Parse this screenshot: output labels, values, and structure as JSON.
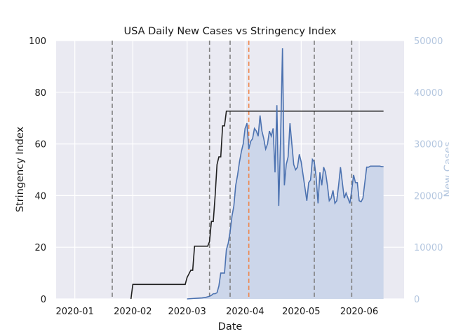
{
  "chart_data": {
    "type": "line",
    "title": "USA Daily New Cases vs Stringency Index",
    "xlabel": "Date",
    "ylabel_left": "Stringency Index",
    "ylabel_right": "New Cases",
    "x_ticks": [
      "2020-01",
      "2020-02",
      "2020-03",
      "2020-04",
      "2020-05",
      "2020-06"
    ],
    "y_left_ticks": [
      "0",
      "20",
      "40",
      "60",
      "80",
      "100"
    ],
    "y_right_ticks": [
      "0",
      "10000",
      "20000",
      "30000",
      "40000",
      "50000"
    ],
    "ylim_left": [
      0,
      100
    ],
    "ylim_right": [
      0,
      50000
    ],
    "xlim": [
      "2019-12-22",
      "2020-06-25"
    ],
    "grid": true,
    "colors": {
      "background": "#eaeaf2",
      "grid": "#ffffff",
      "stringency": "#1f1f1f",
      "cases_line": "#4c72b0",
      "cases_fill": "#ccd6ea",
      "right_axis_text": "#b3c6df",
      "event_lines": "#7f7f7f",
      "highlight_line": "#ee854a"
    },
    "vertical_lines": [
      {
        "date": "2020-01-21",
        "color": "gray"
      },
      {
        "date": "2020-03-13",
        "color": "gray"
      },
      {
        "date": "2020-03-24",
        "color": "gray"
      },
      {
        "date": "2020-04-03",
        "color": "orange"
      },
      {
        "date": "2020-05-08",
        "color": "gray"
      },
      {
        "date": "2020-05-28",
        "color": "gray"
      }
    ],
    "series": [
      {
        "axis": "left",
        "style": "step-line",
        "x": [
          "2020-01-31",
          "2020-02-01",
          "2020-02-02",
          "2020-02-29",
          "2020-03-01",
          "2020-03-03",
          "2020-03-04",
          "2020-03-05",
          "2020-03-12",
          "2020-03-13",
          "2020-03-14",
          "2020-03-15",
          "2020-03-16",
          "2020-03-17",
          "2020-03-18",
          "2020-03-19",
          "2020-03-20",
          "2020-03-21",
          "2020-03-22",
          "2020-03-23",
          "2020-06-14"
        ],
        "y": [
          0,
          5.6,
          5.6,
          5.6,
          8.3,
          11.1,
          11.1,
          20.4,
          20.4,
          22.2,
          30,
          30,
          40,
          52,
          55,
          55,
          67,
          67,
          72.7,
          72.7,
          72.7
        ]
      },
      {
        "axis": "right",
        "style": "line-filled",
        "x": [
          "2020-03-01",
          "2020-03-03",
          "2020-03-05",
          "2020-03-07",
          "2020-03-09",
          "2020-03-11",
          "2020-03-13",
          "2020-03-14",
          "2020-03-15",
          "2020-03-16",
          "2020-03-17",
          "2020-03-18",
          "2020-03-19",
          "2020-03-20",
          "2020-03-21",
          "2020-03-22",
          "2020-03-23",
          "2020-03-24",
          "2020-03-25",
          "2020-03-26",
          "2020-03-27",
          "2020-03-28",
          "2020-03-29",
          "2020-03-30",
          "2020-03-31",
          "2020-04-01",
          "2020-04-02",
          "2020-04-03",
          "2020-04-04",
          "2020-04-05",
          "2020-04-06",
          "2020-04-07",
          "2020-04-08",
          "2020-04-09",
          "2020-04-10",
          "2020-04-11",
          "2020-04-12",
          "2020-04-13",
          "2020-04-14",
          "2020-04-15",
          "2020-04-16",
          "2020-04-17",
          "2020-04-18",
          "2020-04-19",
          "2020-04-20",
          "2020-04-21",
          "2020-04-22",
          "2020-04-23",
          "2020-04-24",
          "2020-04-25",
          "2020-04-26",
          "2020-04-27",
          "2020-04-28",
          "2020-04-29",
          "2020-04-30",
          "2020-05-01",
          "2020-05-02",
          "2020-05-03",
          "2020-05-04",
          "2020-05-05",
          "2020-05-06",
          "2020-05-07",
          "2020-05-08",
          "2020-05-09",
          "2020-05-10",
          "2020-05-11",
          "2020-05-12",
          "2020-05-13",
          "2020-05-14",
          "2020-05-15",
          "2020-05-16",
          "2020-05-17",
          "2020-05-18",
          "2020-05-19",
          "2020-05-20",
          "2020-05-21",
          "2020-05-22",
          "2020-05-23",
          "2020-05-24",
          "2020-05-25",
          "2020-05-26",
          "2020-05-27",
          "2020-05-28",
          "2020-05-29",
          "2020-05-30",
          "2020-05-31",
          "2020-06-01",
          "2020-06-02",
          "2020-06-03",
          "2020-06-04",
          "2020-06-05",
          "2020-06-06",
          "2020-06-07",
          "2020-06-08",
          "2020-06-09",
          "2020-06-10",
          "2020-06-11",
          "2020-06-12",
          "2020-06-13",
          "2020-06-14"
        ],
        "y": [
          0,
          50,
          100,
          150,
          200,
          300,
          500,
          700,
          1000,
          1000,
          1200,
          2500,
          5000,
          5000,
          5000,
          9500,
          10800,
          13000,
          16000,
          18000,
          22000,
          24000,
          26500,
          28500,
          30000,
          33000,
          34000,
          29000,
          30500,
          31000,
          33000,
          32500,
          31500,
          35500,
          32500,
          31000,
          29000,
          30000,
          32500,
          31500,
          33000,
          24500,
          37500,
          18000,
          31500,
          48500,
          22000,
          26000,
          27500,
          34000,
          30000,
          26000,
          25000,
          25500,
          28000,
          26500,
          24000,
          21500,
          19000,
          22500,
          23000,
          27000,
          26500,
          23500,
          18500,
          24500,
          22000,
          25500,
          24500,
          22000,
          19000,
          19500,
          21000,
          18500,
          19000,
          22000,
          25500,
          22500,
          19500,
          20500,
          19500,
          18500,
          21000,
          24000,
          22500,
          22500,
          19000,
          18800,
          19500,
          22500,
          25500,
          25500,
          25700,
          25700,
          25700,
          25700,
          25700,
          25700,
          25600,
          25600
        ]
      }
    ]
  }
}
